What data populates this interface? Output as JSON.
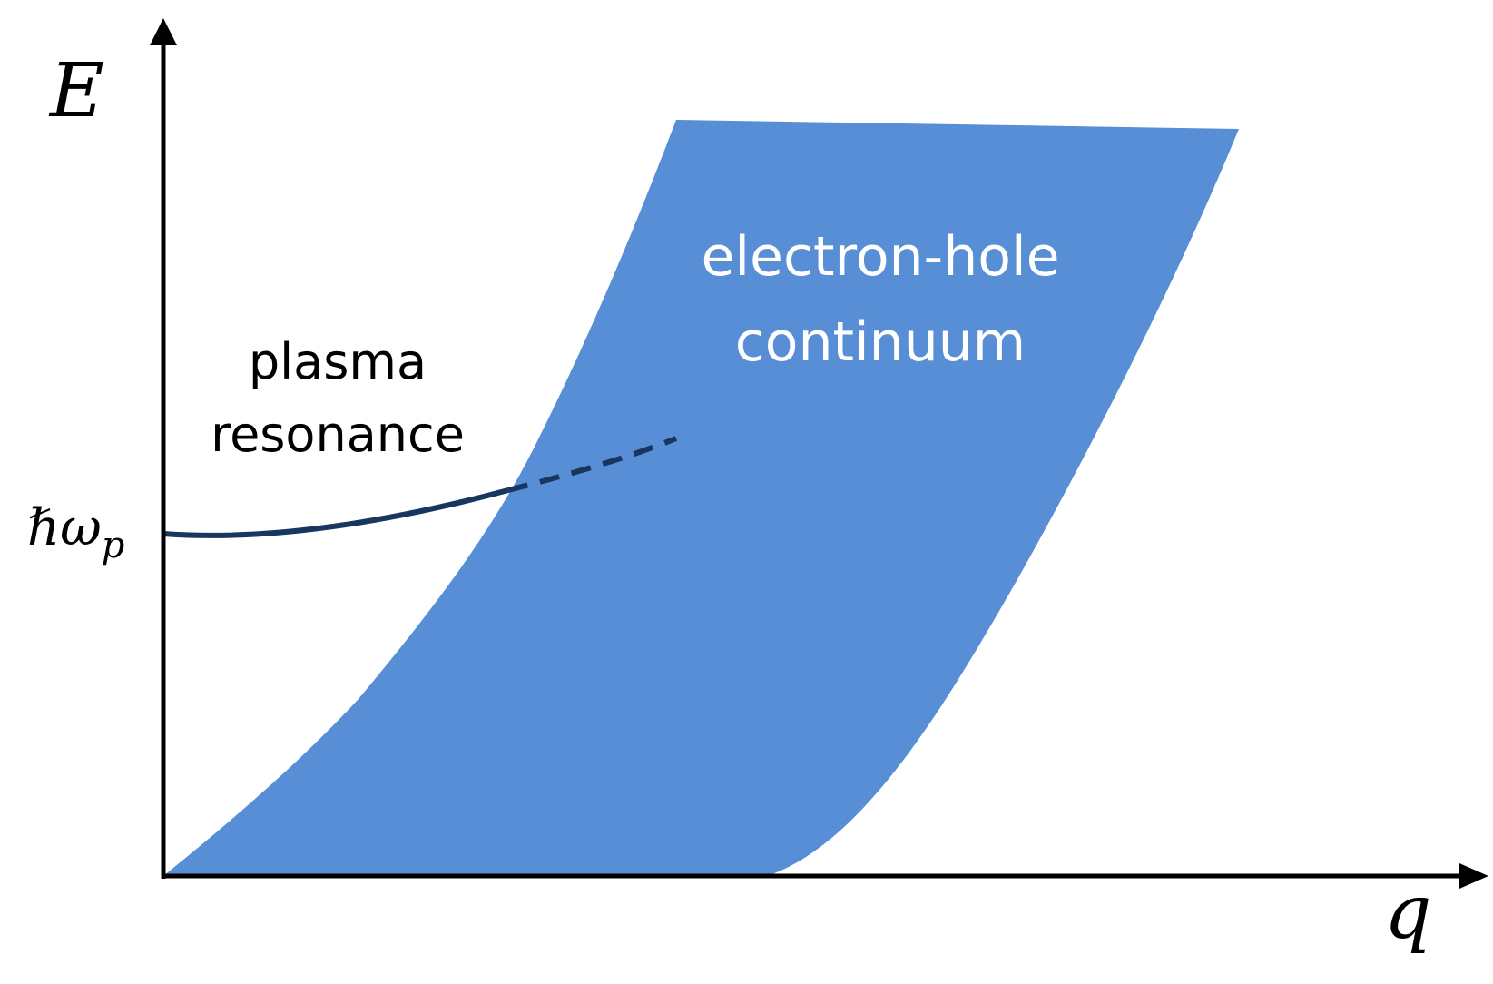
{
  "axes": {
    "y_label": "E",
    "x_label": "q",
    "y_tick_label": "ℏω",
    "y_tick_subscript": "p"
  },
  "continuum": {
    "label_line1": "electron-hole",
    "label_line2": "continuum",
    "fill_color": "#578ED5",
    "text_color": "#FFFFFF"
  },
  "plasma": {
    "label_line1": "plasma",
    "label_line2": "resonance",
    "curve_color": "#17375E",
    "text_color": "#000000"
  }
}
